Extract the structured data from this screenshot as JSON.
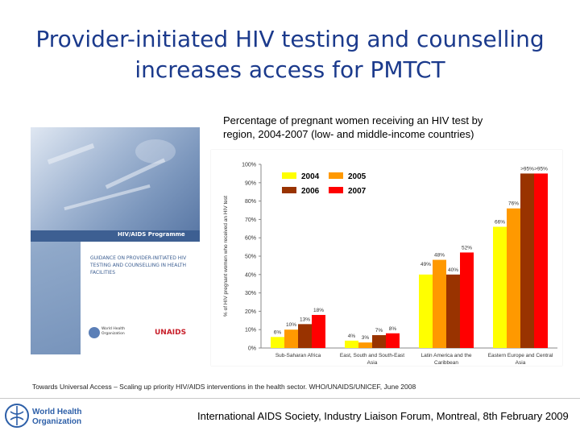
{
  "slide": {
    "title_line1": "Provider-initiated HIV testing and counselling",
    "title_line2": "increases access for PMTCT",
    "source_note": "Towards Universal Access – Scaling up priority HIV/AIDS interventions in the health sector. WHO/UNAIDS/UNICEF, June 2008",
    "footer": "International AIDS Society, Industry Liaison Forum, Montreal, 8th February 2009",
    "footer_logo_text": "World Health Organization"
  },
  "cover": {
    "programme": "HIV/AIDS Programme",
    "guidance": "GUIDANCE ON PROVIDER-INITIATED HIV TESTING AND COUNSELLING IN HEALTH FACILITIES",
    "who_text": "World Health Organization",
    "unaids_text": "UNAIDS"
  },
  "chart_data": {
    "type": "bar",
    "title_line1": "Percentage of pregnant women receiving an HIV test by",
    "title_line2": "region, 2004-2007 (low- and middle-income countries)",
    "ylabel": "% of HIV pregnant women who received an HIV test",
    "ylim": [
      0,
      100
    ],
    "yticks": [
      "0%",
      "10%",
      "20%",
      "30%",
      "40%",
      "50%",
      "60%",
      "70%",
      "80%",
      "90%",
      "100%"
    ],
    "categories": [
      {
        "line1": "Sub-Saharan Africa",
        "line2": ""
      },
      {
        "line1": "East, South and South-East",
        "line2": "Asia"
      },
      {
        "line1": "Latin America and the",
        "line2": "Caribbean"
      },
      {
        "line1": "Eastern Europe and Central",
        "line2": "Asia"
      }
    ],
    "series": [
      {
        "name": "2004",
        "color": "#ffff00",
        "values": [
          6,
          4,
          40,
          66
        ],
        "labels": [
          "6%",
          "4%",
          "",
          "66%"
        ]
      },
      {
        "name": "2005",
        "color": "#ff9900",
        "values": [
          10,
          3,
          48,
          76
        ],
        "labels": [
          "10%",
          "3%",
          "48%",
          "76%"
        ]
      },
      {
        "name": "2006",
        "color": "#993300",
        "values": [
          13,
          7,
          40,
          95
        ],
        "labels": [
          "13%",
          "7%",
          "40%",
          ">95%"
        ]
      },
      {
        "name": "2007",
        "color": "#ff0000",
        "values": [
          18,
          8,
          52,
          95
        ],
        "labels": [
          "18%",
          "8%",
          "52%",
          ">95%"
        ]
      }
    ],
    "extra_labels": [
      "49%"
    ],
    "legend_position": "top-left",
    "grid": false
  }
}
